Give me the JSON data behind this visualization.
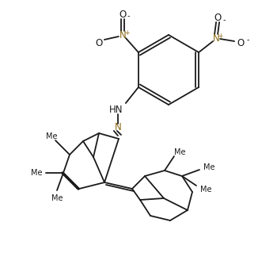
{
  "bg_color": "#ffffff",
  "line_color": "#1a1a1a",
  "line_width": 1.3,
  "figsize": [
    3.26,
    3.19
  ],
  "dpi": 100,
  "xlim": [
    0,
    326
  ],
  "ylim": [
    319,
    0
  ],
  "nitro_color": "#8B6914",
  "nitrogen_color": "#8B6914"
}
